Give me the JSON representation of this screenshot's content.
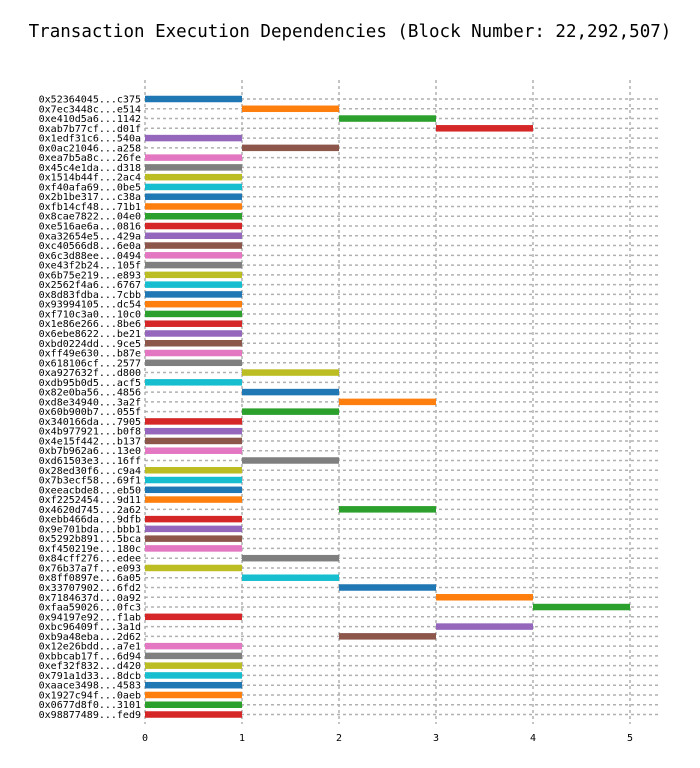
{
  "chart_data": {
    "type": "gantt",
    "title": "Transaction Execution Dependencies (Block Number: 22,292,507)",
    "xlabel": "",
    "ylabel": "",
    "xlim": [
      0,
      5.3
    ],
    "xticks": [
      0,
      1,
      2,
      3,
      4,
      5
    ],
    "grid": true,
    "colors": [
      "#1f77b4",
      "#ff7f0e",
      "#2ca02c",
      "#d62728",
      "#9467bd",
      "#8c564b",
      "#e377c2",
      "#7f7f7f",
      "#bcbd22",
      "#17becf"
    ],
    "tasks": [
      {
        "label": "0x52364045...c375",
        "start": 0,
        "end": 1,
        "color": "#1f77b4"
      },
      {
        "label": "0x7ec3448c...e514",
        "start": 1,
        "end": 2,
        "color": "#ff7f0e"
      },
      {
        "label": "0xe410d5a6...1142",
        "start": 2,
        "end": 3,
        "color": "#2ca02c"
      },
      {
        "label": "0xab7b77cf...d01f",
        "start": 3,
        "end": 4,
        "color": "#d62728"
      },
      {
        "label": "0x1edf31c6...540a",
        "start": 0,
        "end": 1,
        "color": "#9467bd"
      },
      {
        "label": "0x0ac21046...a258",
        "start": 1,
        "end": 2,
        "color": "#8c564b"
      },
      {
        "label": "0xea7b5a8c...26fe",
        "start": 0,
        "end": 1,
        "color": "#e377c2"
      },
      {
        "label": "0x45c4e1da...d318",
        "start": 0,
        "end": 1,
        "color": "#7f7f7f"
      },
      {
        "label": "0x1514b44f...2ac4",
        "start": 0,
        "end": 1,
        "color": "#bcbd22"
      },
      {
        "label": "0xf40afa69...0be5",
        "start": 0,
        "end": 1,
        "color": "#17becf"
      },
      {
        "label": "0x2b1be317...c38a",
        "start": 0,
        "end": 1,
        "color": "#1f77b4"
      },
      {
        "label": "0xfb14cf48...71b1",
        "start": 0,
        "end": 1,
        "color": "#ff7f0e"
      },
      {
        "label": "0x8cae7822...04e0",
        "start": 0,
        "end": 1,
        "color": "#2ca02c"
      },
      {
        "label": "0xe516ae6a...0816",
        "start": 0,
        "end": 1,
        "color": "#d62728"
      },
      {
        "label": "0xa32654e5...429a",
        "start": 0,
        "end": 1,
        "color": "#9467bd"
      },
      {
        "label": "0xc40566d8...6e0a",
        "start": 0,
        "end": 1,
        "color": "#8c564b"
      },
      {
        "label": "0x6c3d88ee...0494",
        "start": 0,
        "end": 1,
        "color": "#e377c2"
      },
      {
        "label": "0xe43f2b24...105f",
        "start": 0,
        "end": 1,
        "color": "#7f7f7f"
      },
      {
        "label": "0x6b75e219...e893",
        "start": 0,
        "end": 1,
        "color": "#bcbd22"
      },
      {
        "label": "0x2562f4a6...6767",
        "start": 0,
        "end": 1,
        "color": "#17becf"
      },
      {
        "label": "0x8d83fdba...7cbb",
        "start": 0,
        "end": 1,
        "color": "#1f77b4"
      },
      {
        "label": "0x93994105...dc54",
        "start": 0,
        "end": 1,
        "color": "#ff7f0e"
      },
      {
        "label": "0xf710c3a0...10c0",
        "start": 0,
        "end": 1,
        "color": "#2ca02c"
      },
      {
        "label": "0x1e86e266...8be6",
        "start": 0,
        "end": 1,
        "color": "#d62728"
      },
      {
        "label": "0x6ebe8622...be21",
        "start": 0,
        "end": 1,
        "color": "#9467bd"
      },
      {
        "label": "0xbd0224dd...9ce5",
        "start": 0,
        "end": 1,
        "color": "#8c564b"
      },
      {
        "label": "0xff49e630...b87e",
        "start": 0,
        "end": 1,
        "color": "#e377c2"
      },
      {
        "label": "0x618106cf...2577",
        "start": 0,
        "end": 1,
        "color": "#7f7f7f"
      },
      {
        "label": "0xa927632f...d800",
        "start": 1,
        "end": 2,
        "color": "#bcbd22"
      },
      {
        "label": "0xdb95b0d5...acf5",
        "start": 0,
        "end": 1,
        "color": "#17becf"
      },
      {
        "label": "0x82e0ba56...4856",
        "start": 1,
        "end": 2,
        "color": "#1f77b4"
      },
      {
        "label": "0xd8e34940...3a2f",
        "start": 2,
        "end": 3,
        "color": "#ff7f0e"
      },
      {
        "label": "0x60b900b7...055f",
        "start": 1,
        "end": 2,
        "color": "#2ca02c"
      },
      {
        "label": "0x340166da...7905",
        "start": 0,
        "end": 1,
        "color": "#d62728"
      },
      {
        "label": "0x4b977921...b0f8",
        "start": 0,
        "end": 1,
        "color": "#9467bd"
      },
      {
        "label": "0x4e15f442...b137",
        "start": 0,
        "end": 1,
        "color": "#8c564b"
      },
      {
        "label": "0xb7b962a6...13e0",
        "start": 0,
        "end": 1,
        "color": "#e377c2"
      },
      {
        "label": "0xd61503e3...16ff",
        "start": 1,
        "end": 2,
        "color": "#7f7f7f"
      },
      {
        "label": "0x28ed30f6...c9a4",
        "start": 0,
        "end": 1,
        "color": "#bcbd22"
      },
      {
        "label": "0x7b3ecf58...69f1",
        "start": 0,
        "end": 1,
        "color": "#17becf"
      },
      {
        "label": "0xeeacbde8...eb50",
        "start": 0,
        "end": 1,
        "color": "#1f77b4"
      },
      {
        "label": "0xf2252454...9d11",
        "start": 0,
        "end": 1,
        "color": "#ff7f0e"
      },
      {
        "label": "0x4620d745...2a62",
        "start": 2,
        "end": 3,
        "color": "#2ca02c"
      },
      {
        "label": "0xebb466da...9dfb",
        "start": 0,
        "end": 1,
        "color": "#d62728"
      },
      {
        "label": "0x9e701bda...bbb1",
        "start": 0,
        "end": 1,
        "color": "#9467bd"
      },
      {
        "label": "0x5292b891...5bca",
        "start": 0,
        "end": 1,
        "color": "#8c564b"
      },
      {
        "label": "0xf450219e...180c",
        "start": 0,
        "end": 1,
        "color": "#e377c2"
      },
      {
        "label": "0x84cff276...edee",
        "start": 1,
        "end": 2,
        "color": "#7f7f7f"
      },
      {
        "label": "0x76b37a7f...e093",
        "start": 0,
        "end": 1,
        "color": "#bcbd22"
      },
      {
        "label": "0x8ff0897e...6a05",
        "start": 1,
        "end": 2,
        "color": "#17becf"
      },
      {
        "label": "0x33707902...6fd2",
        "start": 2,
        "end": 3,
        "color": "#1f77b4"
      },
      {
        "label": "0x7184637d...0a92",
        "start": 3,
        "end": 4,
        "color": "#ff7f0e"
      },
      {
        "label": "0xfaa59026...0fc3",
        "start": 4,
        "end": 5,
        "color": "#2ca02c"
      },
      {
        "label": "0x94197e92...f1ab",
        "start": 0,
        "end": 1,
        "color": "#d62728"
      },
      {
        "label": "0xbc96409f...3a1d",
        "start": 3,
        "end": 4,
        "color": "#9467bd"
      },
      {
        "label": "0xb9a48eba...2d62",
        "start": 2,
        "end": 3,
        "color": "#8c564b"
      },
      {
        "label": "0x12e26bdd...a7e1",
        "start": 0,
        "end": 1,
        "color": "#e377c2"
      },
      {
        "label": "0xbbcab17f...6d94",
        "start": 0,
        "end": 1,
        "color": "#7f7f7f"
      },
      {
        "label": "0xef32f832...d420",
        "start": 0,
        "end": 1,
        "color": "#bcbd22"
      },
      {
        "label": "0x791a1d33...8dcb",
        "start": 0,
        "end": 1,
        "color": "#17becf"
      },
      {
        "label": "0xaace3498...4583",
        "start": 0,
        "end": 1,
        "color": "#1f77b4"
      },
      {
        "label": "0x1927c94f...0aeb",
        "start": 0,
        "end": 1,
        "color": "#ff7f0e"
      },
      {
        "label": "0x0677d8f0...3101",
        "start": 0,
        "end": 1,
        "color": "#2ca02c"
      },
      {
        "label": "0x98877489...fed9",
        "start": 0,
        "end": 1,
        "color": "#d62728"
      }
    ]
  }
}
